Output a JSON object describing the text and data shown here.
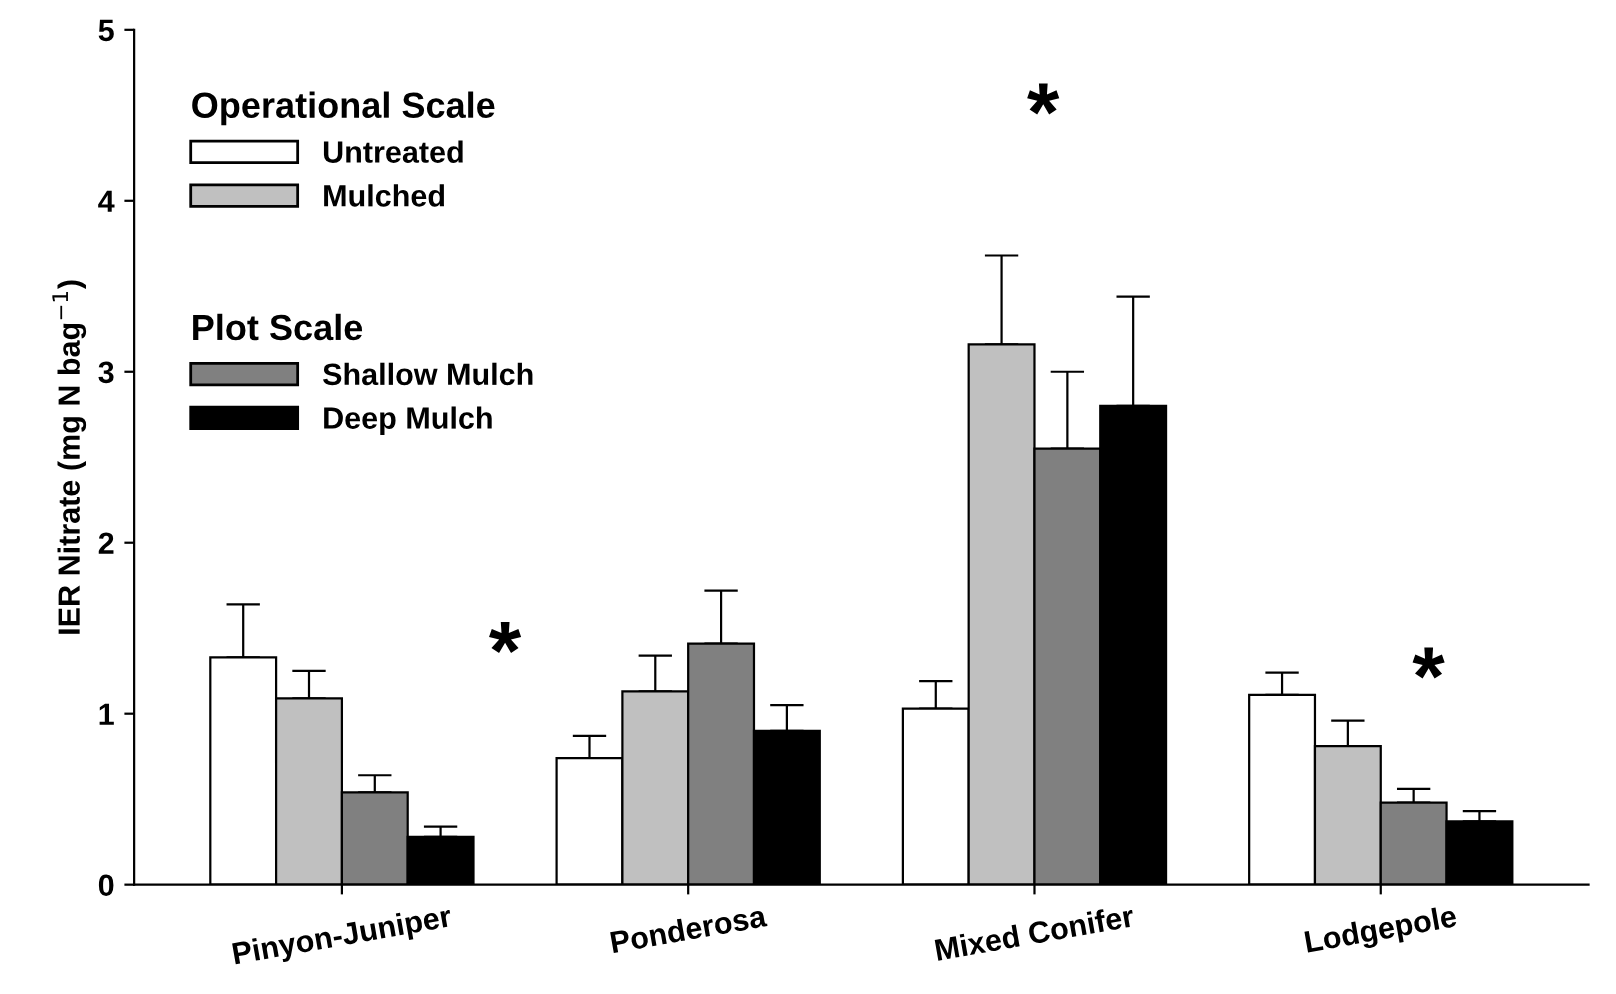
{
  "chart_data": {
    "type": "bar",
    "ylabel": "IER Nitrate (mg N bag$^{−1}$)",
    "categories": [
      "Pinyon-Juniper",
      "Ponderosa",
      "Mixed Conifer",
      "Lodgepole"
    ],
    "series": [
      {
        "name": "Untreated",
        "color": "#ffffff",
        "values": [
          1.33,
          0.74,
          1.03,
          1.11
        ],
        "errors": [
          [
            1.33,
            1.64
          ],
          [
            0.74,
            0.87
          ],
          [
            1.03,
            1.19
          ],
          [
            1.11,
            1.24
          ]
        ]
      },
      {
        "name": "Mulched",
        "color": "#c0c0c0",
        "values": [
          1.09,
          1.13,
          3.16,
          0.81
        ],
        "errors": [
          [
            1.09,
            1.25
          ],
          [
            1.13,
            1.34
          ],
          [
            3.16,
            3.68
          ],
          [
            0.81,
            0.96
          ]
        ]
      },
      {
        "name": "Shallow Mulch",
        "color": "#808080",
        "values": [
          0.54,
          1.41,
          2.55,
          0.48
        ],
        "errors": [
          [
            0.54,
            0.64
          ],
          [
            1.41,
            1.72
          ],
          [
            2.55,
            3.0
          ],
          [
            0.48,
            0.56
          ]
        ]
      },
      {
        "name": "Deep Mulch",
        "color": "#000000",
        "values": [
          0.28,
          0.9,
          2.8,
          0.37
        ],
        "errors": [
          [
            0.28,
            0.34
          ],
          [
            0.9,
            1.05
          ],
          [
            2.8,
            3.44
          ],
          [
            0.37,
            0.43
          ]
        ]
      }
    ],
    "legend_title": "Operational Scale",
    "annotations": [
      "Plot Scale",
      "*",
      "*",
      "*"
    ],
    "ylim": [
      0,
      5
    ],
    "yticks": [
      0,
      1,
      2,
      3,
      4,
      5
    ],
    "grid": false,
    "legend": "top left"
  }
}
